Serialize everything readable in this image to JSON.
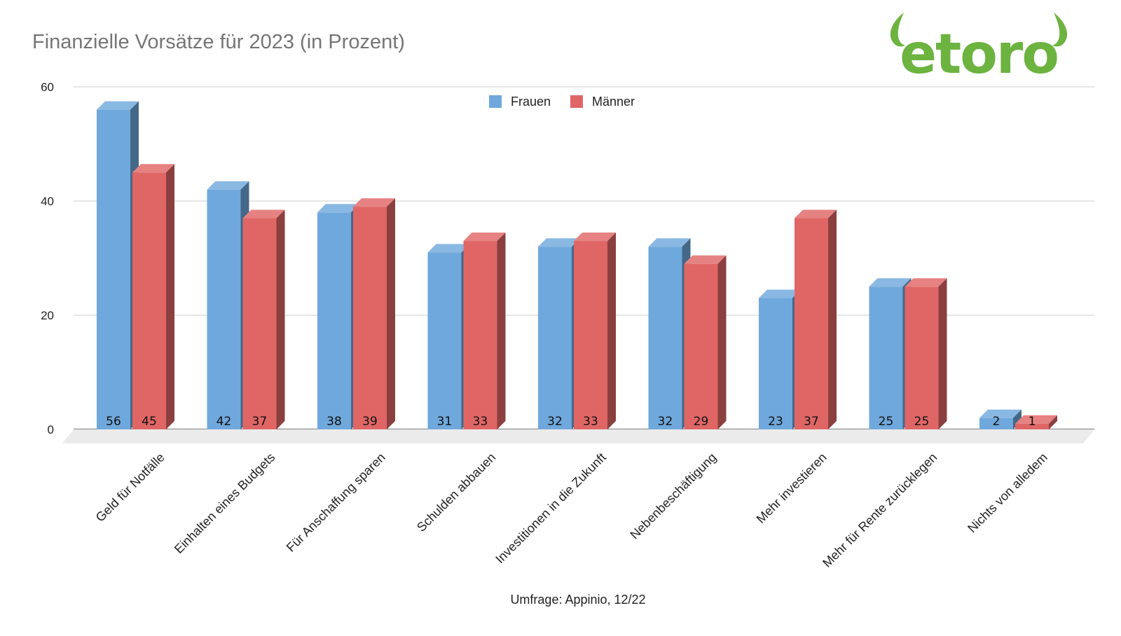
{
  "title": "Finanzielle Vorsätze für 2023 (in Prozent)",
  "source": "Umfrage: Appinio, 12/22",
  "logo_text": "etoro",
  "colors": {
    "frauen": "#6fa8dc",
    "maenner": "#e06666",
    "logo": "#6cb33f",
    "grid": "#cccccc",
    "text": "#222222",
    "title": "#757575"
  },
  "chart_data": {
    "type": "bar",
    "subtype": "3d-clustered",
    "title": "Finanzielle Vorsätze für 2023 (in Prozent)",
    "xlabel": "",
    "ylabel": "",
    "ylim": [
      0,
      60
    ],
    "yticks": [
      0,
      20,
      40,
      60
    ],
    "grid": true,
    "legend_position": "top-center",
    "categories": [
      "Geld für Notfälle",
      "Einhalten eines Budgets",
      "Für Anschaffung sparen",
      "Schulden abbauen",
      "Investitionen in die Zukunft",
      "Nebenbeschäftigung",
      "Mehr investieren",
      "Mehr für Rente zurücklegen",
      "Nichts von alledem"
    ],
    "series": [
      {
        "name": "Frauen",
        "color": "#6fa8dc",
        "values": [
          56,
          42,
          38,
          31,
          32,
          32,
          23,
          25,
          2
        ]
      },
      {
        "name": "Männer",
        "color": "#e06666",
        "values": [
          45,
          37,
          39,
          33,
          33,
          29,
          37,
          25,
          1
        ]
      }
    ]
  }
}
